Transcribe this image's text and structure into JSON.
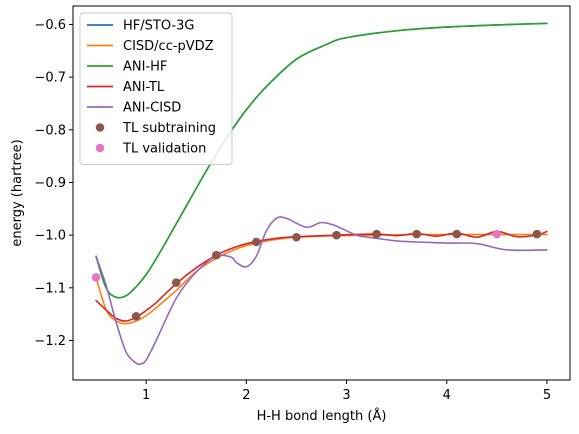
{
  "chart_data": {
    "type": "line",
    "title": "",
    "xlabel": "H-H bond length (Å)",
    "ylabel": "energy (hartree)",
    "xlim": [
      0.27,
      5.23
    ],
    "ylim": [
      -1.275,
      -0.565
    ],
    "xticks": [
      1,
      2,
      3,
      4,
      5
    ],
    "yticks": [
      -1.2,
      -1.1,
      -1.0,
      -0.9,
      -0.8,
      -0.7,
      -0.6
    ],
    "xtick_labels": [
      "1",
      "2",
      "3",
      "4",
      "5"
    ],
    "ytick_labels": [
      "−1.2",
      "−1.1",
      "−1.0",
      "−0.9",
      "−0.8",
      "−0.7",
      "−0.6"
    ],
    "grid": false,
    "legend_position": "upper-left",
    "series": [
      {
        "name": "HF/STO-3G",
        "kind": "line",
        "color": "#1f77b4",
        "x": [
          0.5,
          0.6,
          0.7,
          0.8,
          0.9,
          1.0,
          1.1,
          1.2,
          1.4,
          1.6,
          1.8,
          2.0,
          2.2,
          2.5,
          2.8,
          3.0,
          3.5,
          4.0,
          4.5,
          5.0
        ],
        "y": [
          -1.04,
          -1.1,
          -1.118,
          -1.115,
          -1.098,
          -1.075,
          -1.045,
          -1.012,
          -0.945,
          -0.878,
          -0.816,
          -0.762,
          -0.718,
          -0.666,
          -0.638,
          -0.625,
          -0.612,
          -0.605,
          -0.601,
          -0.598
        ]
      },
      {
        "name": "CISD/cc-pVDZ",
        "kind": "line",
        "color": "#ff7f0e",
        "x": [
          0.5,
          0.6,
          0.7,
          0.8,
          0.9,
          1.0,
          1.1,
          1.3,
          1.5,
          1.7,
          1.9,
          2.1,
          2.3,
          2.5,
          2.9,
          3.3,
          3.7,
          4.1,
          4.5,
          5.0
        ],
        "y": [
          -1.08,
          -1.141,
          -1.163,
          -1.168,
          -1.163,
          -1.153,
          -1.138,
          -1.105,
          -1.069,
          -1.044,
          -1.026,
          -1.015,
          -1.008,
          -1.004,
          -1.001,
          -1.0,
          -0.999,
          -0.999,
          -0.999,
          -0.999
        ]
      },
      {
        "name": "ANI-HF",
        "kind": "line",
        "color": "#2ca02c",
        "x": [
          0.5,
          0.6,
          0.7,
          0.8,
          0.9,
          1.0,
          1.1,
          1.2,
          1.4,
          1.6,
          1.8,
          2.0,
          2.2,
          2.5,
          2.8,
          3.0,
          3.5,
          4.0,
          4.5,
          5.0
        ],
        "y": [
          -1.04,
          -1.1,
          -1.118,
          -1.115,
          -1.098,
          -1.075,
          -1.045,
          -1.012,
          -0.945,
          -0.878,
          -0.816,
          -0.762,
          -0.718,
          -0.666,
          -0.638,
          -0.625,
          -0.612,
          -0.605,
          -0.601,
          -0.598
        ]
      },
      {
        "name": "ANI-TL",
        "kind": "line",
        "color": "#d62728",
        "x": [
          0.5,
          0.6,
          0.7,
          0.8,
          0.9,
          1.0,
          1.1,
          1.3,
          1.5,
          1.7,
          1.9,
          2.1,
          2.3,
          2.5,
          2.9,
          3.3,
          3.5,
          3.7,
          3.9,
          4.1,
          4.3,
          4.5,
          4.7,
          4.9,
          5.0
        ],
        "y": [
          -1.124,
          -1.142,
          -1.158,
          -1.163,
          -1.156,
          -1.143,
          -1.128,
          -1.092,
          -1.062,
          -1.038,
          -1.022,
          -1.012,
          -1.006,
          -1.003,
          -1.0,
          -0.998,
          -1.001,
          -0.997,
          -1.002,
          -0.996,
          -1.004,
          -0.993,
          -1.003,
          -1.0,
          -0.993
        ]
      },
      {
        "name": "ANI-CISD",
        "kind": "line",
        "color": "#9467bd",
        "x": [
          0.5,
          0.6,
          0.7,
          0.8,
          0.9,
          0.95,
          1.0,
          1.1,
          1.3,
          1.5,
          1.7,
          1.85,
          1.9,
          2.0,
          2.1,
          2.2,
          2.3,
          2.4,
          2.6,
          2.75,
          2.9,
          3.1,
          3.3,
          3.5,
          3.7,
          4.0,
          4.3,
          4.6,
          5.0
        ],
        "y": [
          -1.04,
          -1.095,
          -1.165,
          -1.222,
          -1.243,
          -1.244,
          -1.237,
          -1.2,
          -1.12,
          -1.07,
          -1.04,
          -1.042,
          -1.052,
          -1.06,
          -1.04,
          -0.992,
          -0.968,
          -0.968,
          -0.985,
          -0.976,
          -0.983,
          -1.0,
          -1.006,
          -1.011,
          -1.013,
          -1.015,
          -1.016,
          -1.028,
          -1.028
        ]
      },
      {
        "name": "TL subtraining",
        "kind": "points",
        "color": "#8c564b",
        "x": [
          0.9,
          1.3,
          1.7,
          2.1,
          2.5,
          2.9,
          3.3,
          3.7,
          4.1,
          4.9
        ],
        "y": [
          -1.154,
          -1.09,
          -1.038,
          -1.013,
          -1.004,
          -1.0,
          -0.998,
          -0.998,
          -0.998,
          -0.998
        ]
      },
      {
        "name": "TL validation",
        "kind": "points",
        "color": "#e377c2",
        "x": [
          0.5,
          4.5
        ],
        "y": [
          -1.08,
          -0.998
        ]
      }
    ]
  }
}
